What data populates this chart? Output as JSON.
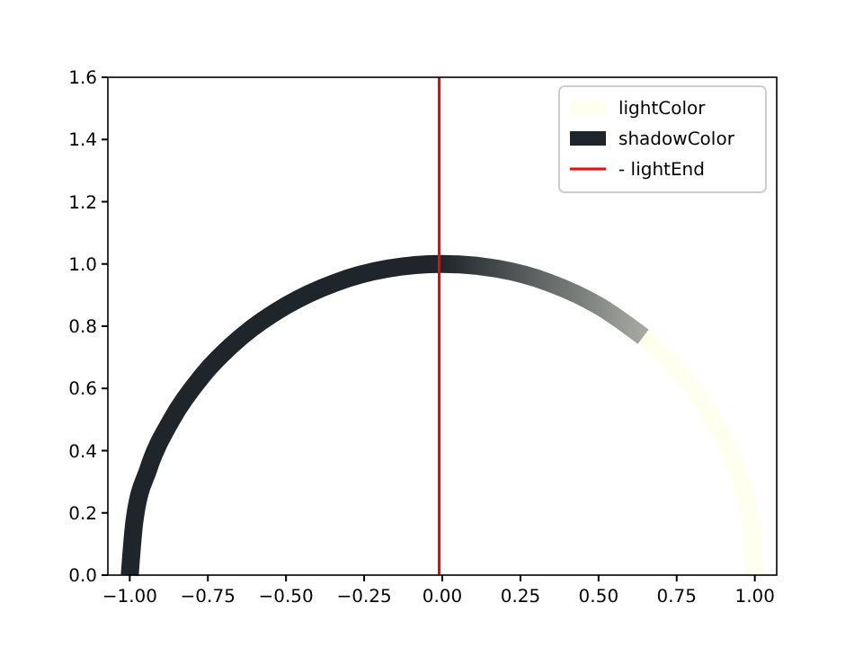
{
  "chart_data": {
    "type": "line",
    "xlim": [
      -1.07,
      1.07
    ],
    "ylim": [
      0,
      1.6
    ],
    "xticks": [
      {
        "value": -1,
        "label": "−1.00"
      },
      {
        "value": -0.75,
        "label": "−0.75"
      },
      {
        "value": -0.5,
        "label": "−0.50"
      },
      {
        "value": -0.25,
        "label": "−0.25"
      },
      {
        "value": 0,
        "label": "0.00"
      },
      {
        "value": 0.25,
        "label": "0.25"
      },
      {
        "value": 0.5,
        "label": "0.50"
      },
      {
        "value": 0.75,
        "label": "0.75"
      },
      {
        "value": 1,
        "label": "1.00"
      }
    ],
    "yticks": [
      {
        "value": 0,
        "label": "0.0"
      },
      {
        "value": 0.2,
        "label": "0.2"
      },
      {
        "value": 0.4,
        "label": "0.4"
      },
      {
        "value": 0.6,
        "label": "0.6"
      },
      {
        "value": 0.8,
        "label": "0.8"
      },
      {
        "value": 1,
        "label": "1.0"
      },
      {
        "value": 1.2,
        "label": "1.2"
      },
      {
        "value": 1.4,
        "label": "1.4"
      },
      {
        "value": 1.6,
        "label": "1.6"
      }
    ],
    "series": [
      {
        "name": "lightColor",
        "color": "#fffff0",
        "x": [
          0,
          0.174,
          0.342,
          0.5,
          0.643,
          0.766,
          0.866,
          0.94,
          0.985,
          1
        ],
        "values": [
          1,
          0.985,
          0.94,
          0.866,
          0.766,
          0.643,
          0.5,
          0.342,
          0.174,
          0
        ]
      },
      {
        "name": "shadowColor",
        "color": "#1f262b",
        "x": [
          -1,
          -0.985,
          -0.94,
          -0.866,
          -0.766,
          -0.643,
          -0.5,
          -0.342,
          -0.174,
          0,
          0.174,
          0.342,
          0.5,
          0.643
        ],
        "values": [
          0,
          0.174,
          0.342,
          0.5,
          0.643,
          0.766,
          0.866,
          0.94,
          0.985,
          1,
          0.985,
          0.94,
          0.866,
          0.766
        ]
      },
      {
        "name": "- lightEnd",
        "color": "#ff0000",
        "x": [
          -0.01,
          -0.01
        ],
        "values": [
          0,
          1.6
        ]
      }
    ],
    "legend": "top right"
  }
}
